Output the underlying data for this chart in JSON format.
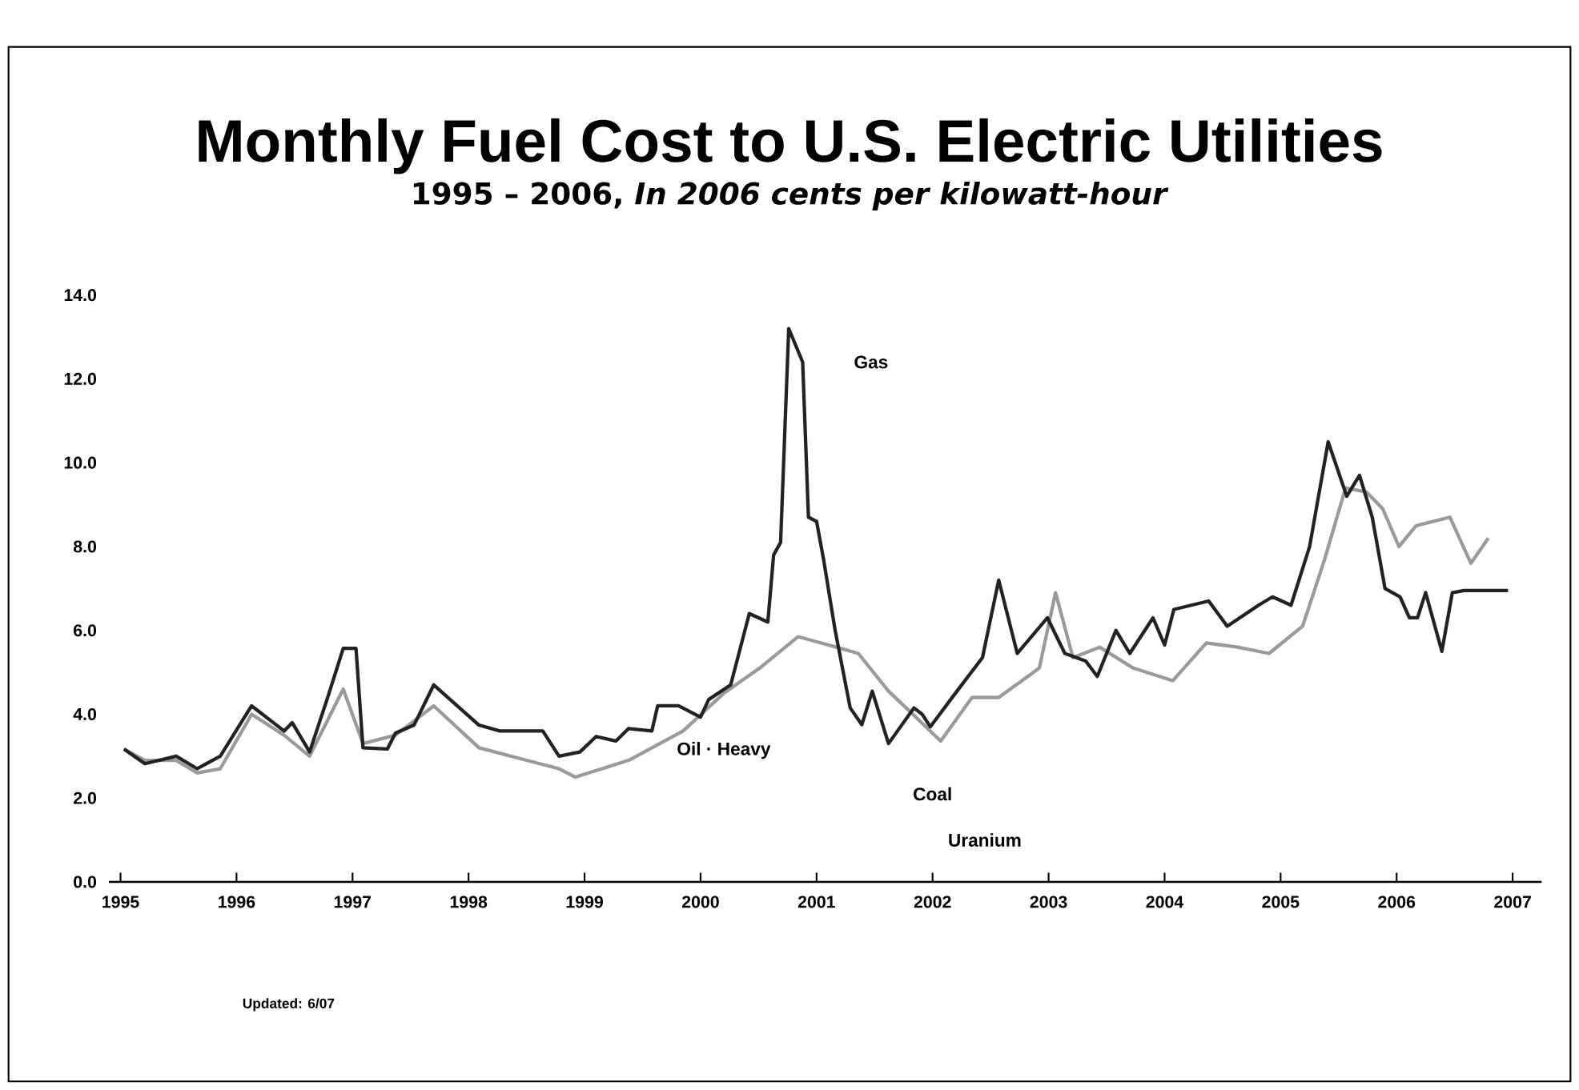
{
  "chart_data": {
    "type": "line",
    "title": "Monthly Fuel Cost to U.S. Electric Utilities",
    "subtitle": "1995 – 2006, *In 2006 cents per kilowatt-hour*",
    "x": [
      1995.03,
      1995.21,
      1995.48,
      1995.66,
      1995.86,
      1996.13,
      1996.41,
      1996.48,
      1996.63,
      1996.78,
      1996.92,
      1997.03,
      1997.09,
      1997.3,
      1997.37,
      1997.53,
      1997.7,
      1998.09,
      1998.27,
      1998.64,
      1998.78,
      1998.96,
      1999.1,
      1999.27,
      1999.38,
      1999.58,
      1999.63,
      1999.81,
      2000.0,
      2000.07,
      2000.26,
      2000.42,
      2000.58,
      2000.63,
      2000.69,
      2000.76,
      2000.88,
      2000.93,
      2001.0,
      2001.06,
      2001.16,
      2001.29,
      2001.39,
      2001.48,
      2001.62,
      2001.84,
      2001.91,
      2001.98,
      2002.21,
      2002.43,
      2002.57,
      2002.73,
      2002.99,
      2003.14,
      2003.32,
      2003.42,
      2003.58,
      2003.7,
      2003.9,
      2004.0,
      2004.08,
      2004.38,
      2004.54,
      2004.81,
      2004.93,
      2005.09,
      2005.25,
      2005.41,
      2005.57,
      2005.68,
      2005.79,
      2005.9,
      2006.03,
      2006.11,
      2006.18,
      2006.25,
      2006.39,
      2006.48,
      2006.58,
      2006.74,
      2006.81,
      2006.89,
      2006.96
    ],
    "series": [
      {
        "name": "Gas",
        "color": "#222222",
        "values": [
          3.17,
          2.82,
          3.0,
          2.7,
          3.0,
          4.2,
          3.6,
          3.8,
          3.1,
          4.35,
          5.57,
          5.57,
          3.2,
          3.17,
          3.55,
          3.74,
          4.7,
          3.74,
          3.6,
          3.6,
          3.0,
          3.1,
          3.47,
          3.36,
          3.66,
          3.6,
          4.2,
          4.2,
          3.93,
          4.35,
          4.7,
          6.4,
          6.2,
          7.8,
          8.1,
          13.2,
          12.4,
          8.7,
          8.6,
          7.7,
          6.0,
          4.15,
          3.75,
          4.55,
          3.3,
          4.15,
          4.0,
          3.7,
          4.55,
          5.35,
          7.2,
          5.45,
          6.3,
          5.45,
          5.27,
          4.9,
          6.0,
          5.45,
          6.3,
          5.65,
          6.5,
          6.7,
          6.1,
          6.6,
          6.8,
          6.6,
          8.0,
          10.5,
          9.2,
          9.7,
          8.7,
          7.0,
          6.8,
          6.3,
          6.3,
          6.9,
          5.5,
          6.9,
          6.95,
          6.95,
          6.95,
          6.95,
          6.95
        ]
      },
      {
        "name": "Oil · Heavy",
        "color": "#9a9a9a",
        "x": [
          1995.03,
          1995.21,
          1995.48,
          1995.66,
          1995.86,
          1996.13,
          1996.41,
          1996.63,
          1996.92,
          1997.09,
          1997.37,
          1997.7,
          1998.09,
          1998.5,
          1998.78,
          1998.92,
          1999.38,
          1999.85,
          2000.2,
          2000.51,
          2000.84,
          2001.17,
          2001.36,
          2001.62,
          2001.83,
          2002.07,
          2002.34,
          2002.57,
          2002.92,
          2003.06,
          2003.21,
          2003.44,
          2003.73,
          2004.07,
          2004.36,
          2004.63,
          2004.9,
          2005.19,
          2005.38,
          2005.56,
          2005.74,
          2005.88,
          2006.02,
          2006.17,
          2006.46,
          2006.64,
          2006.79
        ],
        "values": [
          3.17,
          2.9,
          2.9,
          2.6,
          2.7,
          4.0,
          3.5,
          3.0,
          4.6,
          3.3,
          3.5,
          4.2,
          3.2,
          2.9,
          2.7,
          2.5,
          2.9,
          3.6,
          4.5,
          5.1,
          5.85,
          5.6,
          5.45,
          4.55,
          4.0,
          3.36,
          4.4,
          4.4,
          5.1,
          6.9,
          5.35,
          5.6,
          5.1,
          4.8,
          5.7,
          5.6,
          5.45,
          6.1,
          7.7,
          9.4,
          9.3,
          8.9,
          8.0,
          8.5,
          8.7,
          7.6,
          8.2
        ]
      }
    ],
    "xlim": [
      1994.9,
      2007.25
    ],
    "ylim": [
      0,
      14
    ],
    "xticks": [
      1995,
      1996,
      1997,
      1998,
      1999,
      2000,
      2001,
      2002,
      2003,
      2004,
      2005,
      2006,
      2007
    ],
    "yticks": [
      {
        "value": 0,
        "label": "0.0"
      },
      {
        "value": 2,
        "label": "2.0"
      },
      {
        "value": 4,
        "label": "4.0"
      },
      {
        "value": 6,
        "label": "6.0"
      },
      {
        "value": 8,
        "label": "8.0"
      },
      {
        "value": 10,
        "label": "10.0"
      },
      {
        "value": 12,
        "label": "12.0"
      },
      {
        "value": 14,
        "label": "14.0"
      }
    ],
    "annotations": [
      "Coal",
      "Uranium",
      "Updated: 6/07"
    ],
    "grid": false,
    "marker": "none",
    "line_style": "solid"
  }
}
